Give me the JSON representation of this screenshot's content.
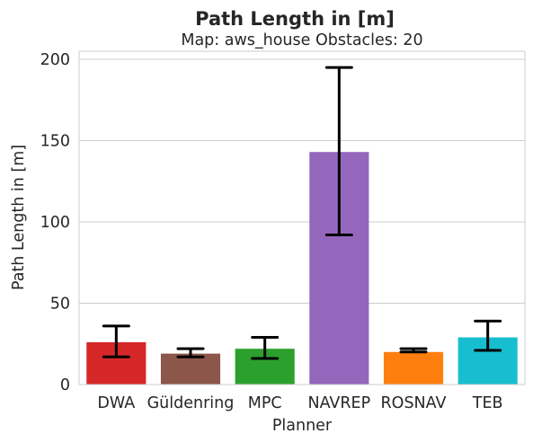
{
  "chart_data": {
    "type": "bar",
    "title": "Path Length in [m]",
    "subtitle": "Map: aws_house Obstacles: 20",
    "xlabel": "Planner",
    "ylabel": "Path Length in [m]",
    "categories": [
      "DWA",
      "Güldenring",
      "MPC",
      "NAVREP",
      "ROSNAV",
      "TEB"
    ],
    "values": [
      26,
      19,
      22,
      143,
      20,
      29
    ],
    "error_low": [
      17,
      17,
      16,
      92,
      20,
      21
    ],
    "error_high": [
      36,
      22,
      29,
      195,
      22,
      39
    ],
    "colors": [
      "#d62728",
      "#8c564b",
      "#2ca02c",
      "#9467bd",
      "#ff7f0e",
      "#17becf"
    ],
    "ylim": [
      0,
      205
    ],
    "yticks": [
      0,
      50,
      100,
      150,
      200
    ],
    "grid": "horizontal"
  }
}
